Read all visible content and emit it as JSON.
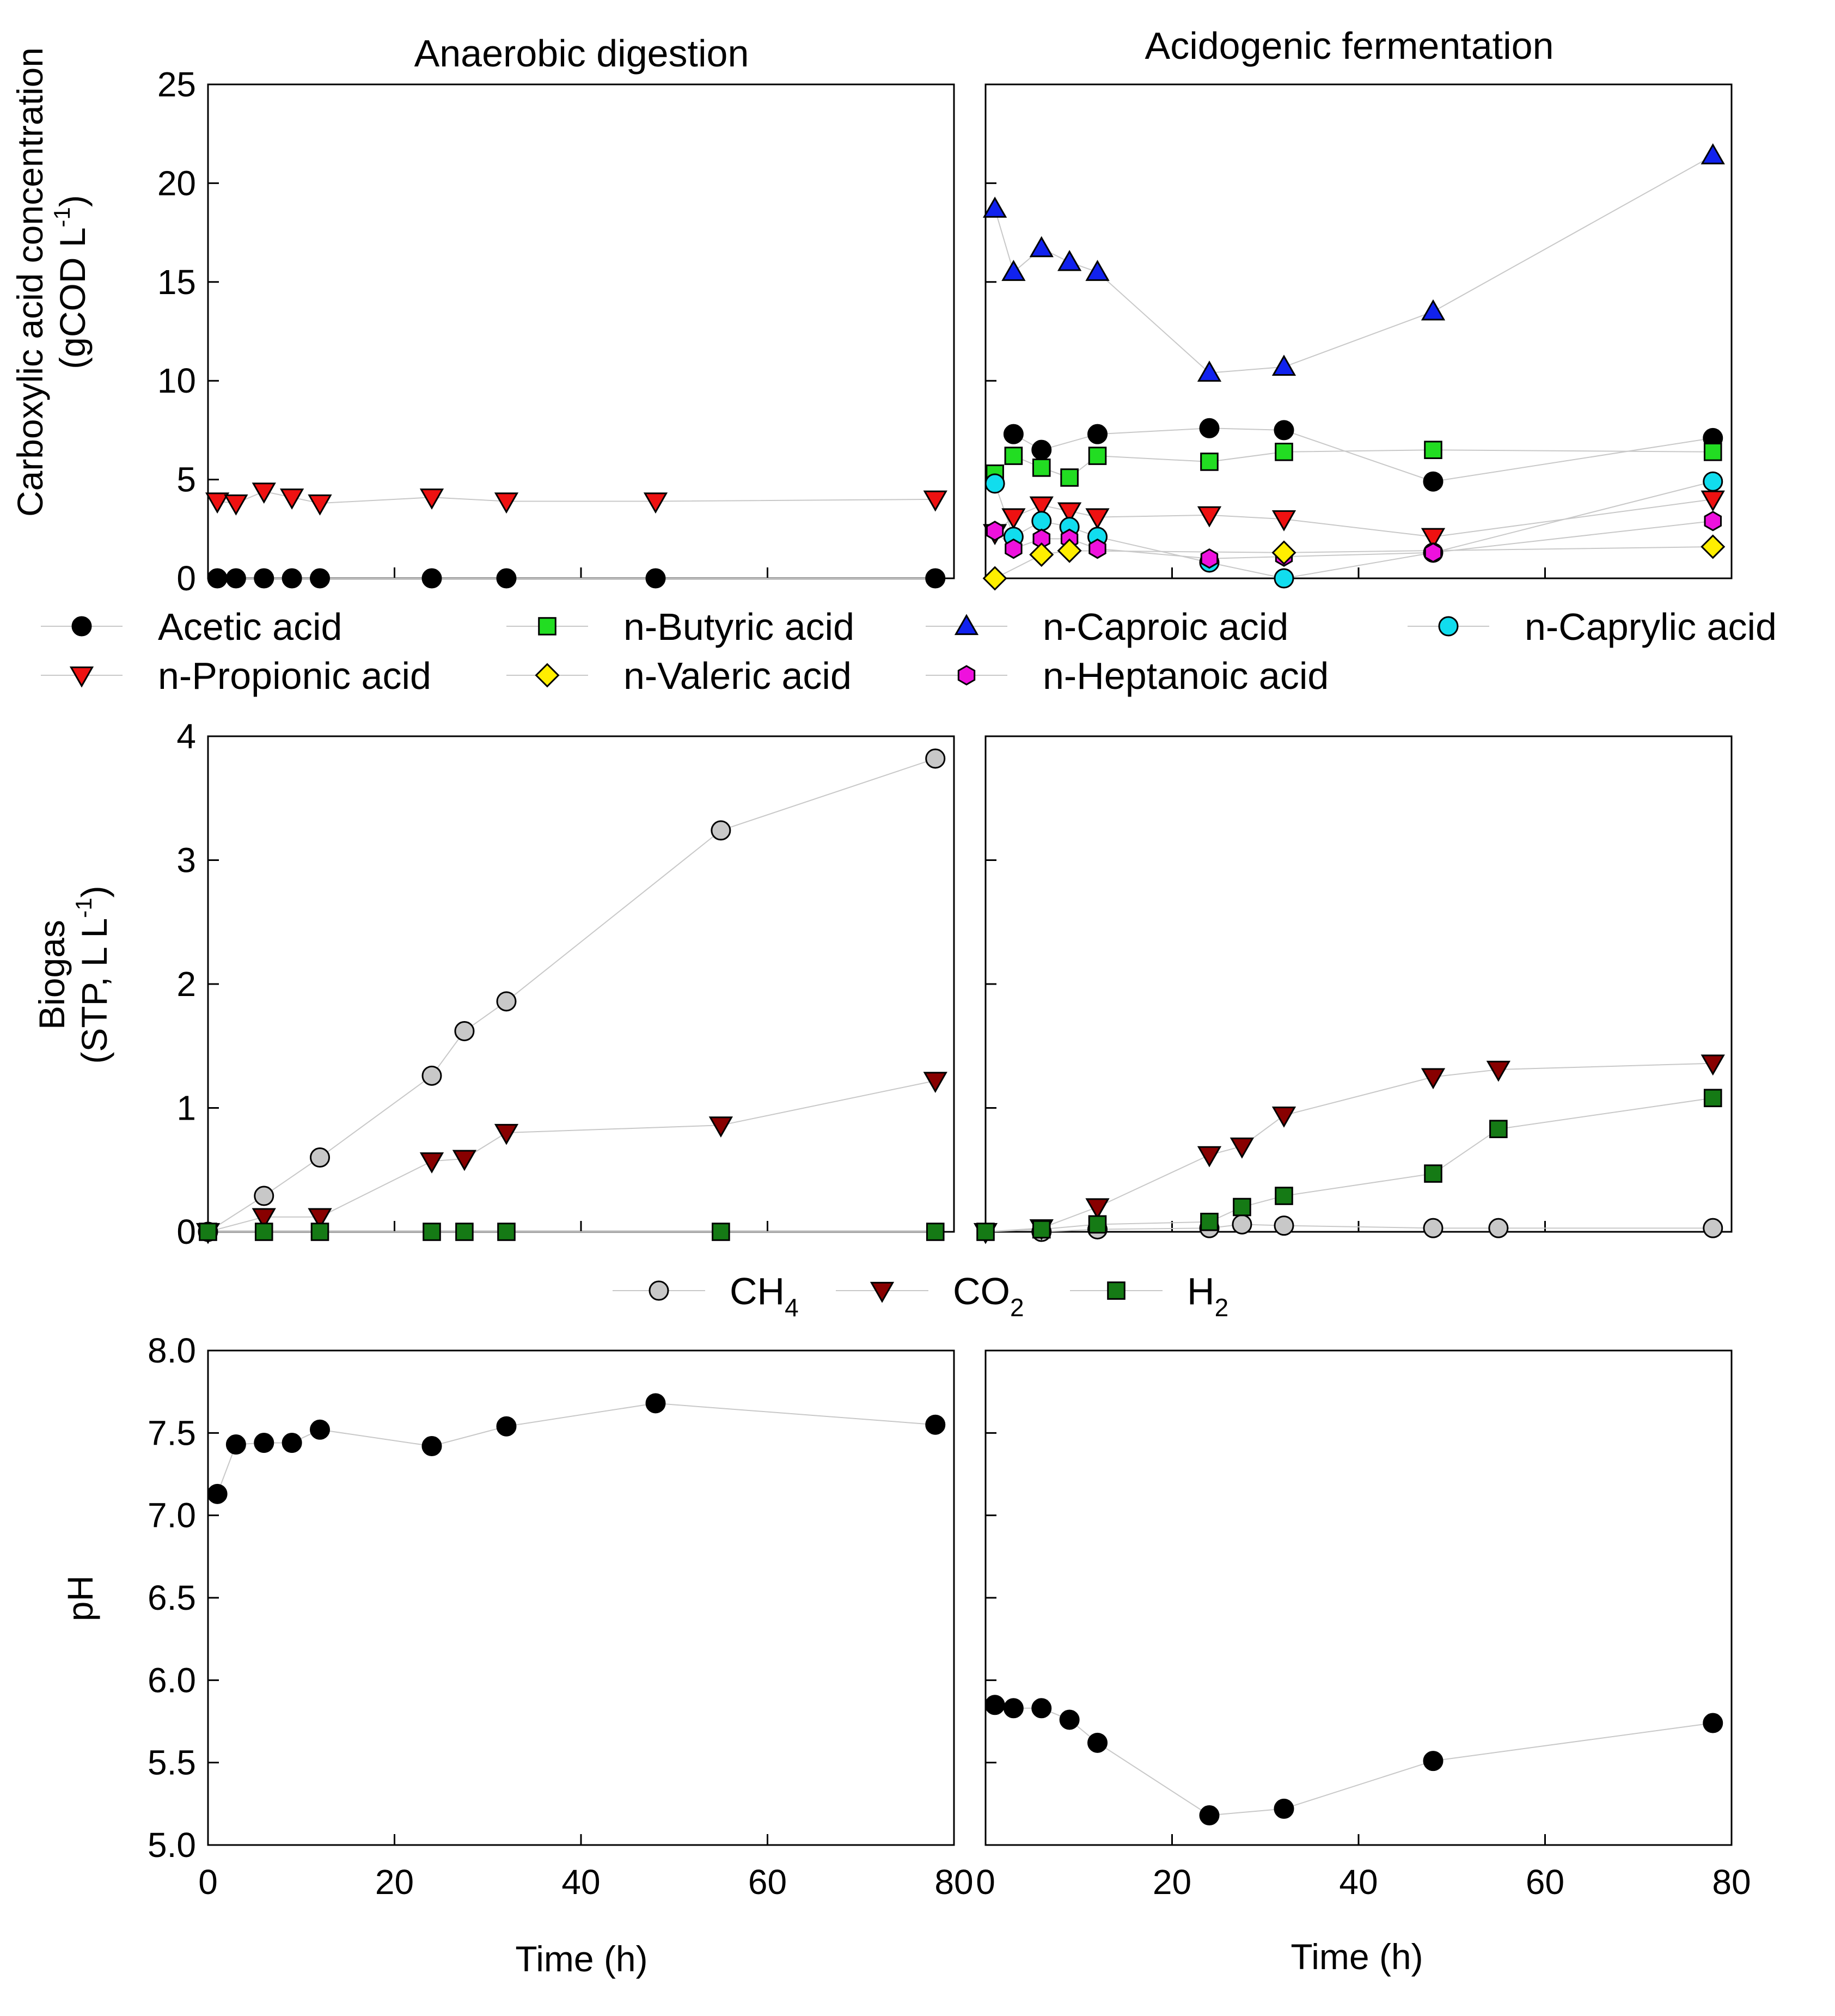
{
  "colors": {
    "acetic": "#000000",
    "propionic": "#ee1111",
    "butyric": "#22dd22",
    "valeric": "#ffee00",
    "caproic": "#1122ee",
    "heptanoic": "#ee11dd",
    "caprylic": "#11ddee",
    "ch4": "#c8c8c8",
    "co2": "#880000",
    "h2": "#157a15",
    "ph": "#000000",
    "connector": "#c8c8c8"
  },
  "chart_data": [
    {
      "id": "acids_ad",
      "type": "scatter",
      "title": "Anaerobic digestion",
      "xlabel": "",
      "ylabel": "Carboxylic acid concentration (gCOD L-1)",
      "xlim": [
        0,
        80
      ],
      "ylim": [
        0,
        25
      ],
      "yticks": [
        "0",
        "5",
        "10",
        "15",
        "20",
        "25"
      ],
      "xticks": [],
      "series": [
        {
          "name": "Acetic acid",
          "key": "acetic",
          "marker": "circle",
          "x": [
            1,
            3,
            6,
            9,
            12,
            24,
            32,
            48,
            78
          ],
          "y": [
            0,
            0,
            0,
            0,
            0,
            0,
            0,
            0,
            0
          ]
        },
        {
          "name": "n-Propionic acid",
          "key": "propionic",
          "marker": "tri-down",
          "x": [
            1,
            3,
            6,
            9,
            12,
            24,
            32,
            48,
            78
          ],
          "y": [
            3.9,
            3.8,
            4.4,
            4.1,
            3.8,
            4.1,
            3.9,
            3.9,
            4.0
          ]
        }
      ]
    },
    {
      "id": "acids_af",
      "type": "scatter",
      "title": "Acidogenic fermentation",
      "xlabel": "",
      "ylabel": "",
      "xlim": [
        0,
        80
      ],
      "ylim": [
        0,
        25
      ],
      "yticks": [],
      "xticks": [],
      "series": [
        {
          "name": "n-Caproic acid",
          "key": "caproic",
          "marker": "tri-up",
          "x": [
            1,
            3,
            6,
            9,
            12,
            24,
            32,
            48,
            78
          ],
          "y": [
            18.7,
            15.5,
            16.7,
            16.0,
            15.5,
            10.4,
            10.7,
            13.5,
            21.4
          ]
        },
        {
          "name": "Acetic acid",
          "key": "acetic",
          "marker": "circle",
          "x": [
            3,
            6,
            12,
            24,
            32,
            48,
            78
          ],
          "y": [
            7.3,
            6.5,
            7.3,
            7.6,
            7.5,
            4.9,
            7.1
          ]
        },
        {
          "name": "n-Butyric acid",
          "key": "butyric",
          "marker": "square",
          "x": [
            1,
            3,
            6,
            9,
            12,
            24,
            32,
            48,
            78
          ],
          "y": [
            5.3,
            6.2,
            5.6,
            5.1,
            6.2,
            5.9,
            6.4,
            6.5,
            6.4
          ]
        },
        {
          "name": "n-Propionic acid",
          "key": "propionic",
          "marker": "tri-down",
          "x": [
            1,
            3,
            6,
            9,
            12,
            24,
            32,
            48,
            78
          ],
          "y": [
            2.3,
            3.1,
            3.7,
            3.4,
            3.1,
            3.2,
            3.0,
            2.1,
            4.0
          ]
        },
        {
          "name": "n-Caprylic acid",
          "key": "caprylic",
          "marker": "circle",
          "x": [
            1,
            3,
            6,
            9,
            12,
            24,
            32,
            48,
            78
          ],
          "y": [
            4.8,
            2.1,
            2.9,
            2.6,
            2.1,
            0.8,
            0.0,
            1.3,
            4.9
          ]
        },
        {
          "name": "n-Heptanoic acid",
          "key": "heptanoic",
          "marker": "hexagon",
          "x": [
            1,
            3,
            6,
            9,
            12,
            24,
            32,
            48,
            78
          ],
          "y": [
            2.4,
            1.5,
            2.0,
            2.0,
            1.5,
            1.0,
            1.1,
            1.3,
            2.9
          ]
        },
        {
          "name": "n-Valeric acid",
          "key": "valeric",
          "marker": "diamond",
          "x": [
            1,
            6,
            9,
            32,
            78
          ],
          "y": [
            0.0,
            1.2,
            1.4,
            1.3,
            1.6
          ]
        }
      ]
    },
    {
      "id": "biogas_ad",
      "type": "scatter",
      "title": "",
      "xlabel": "",
      "ylabel": "Biogas (STP, L L-1)",
      "xlim": [
        0,
        80
      ],
      "ylim": [
        0,
        4
      ],
      "yticks": [
        "0",
        "1",
        "2",
        "3",
        "4"
      ],
      "xticks": [],
      "series": [
        {
          "name": "CH4",
          "key": "ch4",
          "marker": "circle",
          "x": [
            0,
            6,
            12,
            24,
            27.5,
            32,
            55,
            78
          ],
          "y": [
            0,
            0.29,
            0.6,
            1.26,
            1.62,
            1.86,
            3.24,
            3.82
          ]
        },
        {
          "name": "CO2",
          "key": "co2",
          "marker": "tri-down",
          "x": [
            0,
            6,
            12,
            24,
            27.5,
            32,
            55,
            78
          ],
          "y": [
            0,
            0.12,
            0.12,
            0.57,
            0.59,
            0.8,
            0.86,
            1.22
          ]
        },
        {
          "name": "H2",
          "key": "h2",
          "marker": "square",
          "x": [
            0,
            6,
            12,
            24,
            27.5,
            32,
            55,
            78
          ],
          "y": [
            0,
            0,
            0,
            0,
            0,
            0,
            0,
            0
          ]
        }
      ]
    },
    {
      "id": "biogas_af",
      "type": "scatter",
      "title": "",
      "xlabel": "",
      "ylabel": "",
      "xlim": [
        0,
        80
      ],
      "ylim": [
        0,
        4
      ],
      "yticks": [],
      "xticks": [],
      "series": [
        {
          "name": "CH4",
          "key": "ch4",
          "marker": "circle",
          "x": [
            6,
            12,
            24,
            27.5,
            32,
            48,
            55,
            78
          ],
          "y": [
            0.0,
            0.02,
            0.03,
            0.06,
            0.05,
            0.03,
            0.03,
            0.03
          ]
        },
        {
          "name": "CO2",
          "key": "co2",
          "marker": "tri-down",
          "x": [
            0,
            6,
            12,
            24,
            27.5,
            32,
            48,
            55,
            78
          ],
          "y": [
            0,
            0.03,
            0.2,
            0.62,
            0.69,
            0.94,
            1.25,
            1.31,
            1.36
          ]
        },
        {
          "name": "H2",
          "key": "h2",
          "marker": "square",
          "x": [
            0,
            6,
            12,
            24,
            27.5,
            32,
            48,
            55,
            78
          ],
          "y": [
            0,
            0.02,
            0.06,
            0.08,
            0.2,
            0.29,
            0.47,
            0.83,
            1.08
          ]
        }
      ]
    },
    {
      "id": "ph_ad",
      "type": "scatter",
      "title": "",
      "xlabel": "Time (h)",
      "ylabel": "pH",
      "xlim": [
        0,
        80
      ],
      "ylim": [
        5.0,
        8.0
      ],
      "yticks": [
        "5.0",
        "5.5",
        "6.0",
        "6.5",
        "7.0",
        "7.5",
        "8.0"
      ],
      "xticks": [
        "0",
        "20",
        "40",
        "60",
        "80"
      ],
      "series": [
        {
          "name": "pH",
          "key": "ph",
          "marker": "circle",
          "x": [
            1,
            3,
            6,
            9,
            12,
            24,
            32,
            48,
            78
          ],
          "y": [
            7.13,
            7.43,
            7.44,
            7.44,
            7.52,
            7.42,
            7.54,
            7.68,
            7.55
          ]
        }
      ]
    },
    {
      "id": "ph_af",
      "type": "scatter",
      "title": "",
      "xlabel": "Time (h)",
      "ylabel": "",
      "xlim": [
        0,
        80
      ],
      "ylim": [
        5.0,
        8.0
      ],
      "yticks": [],
      "xticks": [
        "0",
        "20",
        "40",
        "60",
        "80"
      ],
      "series": [
        {
          "name": "pH",
          "key": "ph",
          "marker": "circle",
          "x": [
            1,
            3,
            6,
            9,
            12,
            24,
            32,
            48,
            78
          ],
          "y": [
            5.85,
            5.83,
            5.83,
            5.76,
            5.62,
            5.18,
            5.22,
            5.51,
            5.74
          ]
        }
      ]
    }
  ],
  "legends": {
    "acids": [
      {
        "label": "Acetic acid",
        "key": "acetic",
        "marker": "circle"
      },
      {
        "label": "n-Butyric acid",
        "key": "butyric",
        "marker": "square"
      },
      {
        "label": "n-Caproic acid",
        "key": "caproic",
        "marker": "tri-up"
      },
      {
        "label": "n-Caprylic acid",
        "key": "caprylic",
        "marker": "circle"
      },
      {
        "label": "n-Propionic acid",
        "key": "propionic",
        "marker": "tri-down"
      },
      {
        "label": "n-Valeric acid",
        "key": "valeric",
        "marker": "diamond"
      },
      {
        "label": "n-Heptanoic acid",
        "key": "heptanoic",
        "marker": "hexagon"
      }
    ],
    "gas": [
      {
        "label": "CH",
        "sub": "4",
        "key": "ch4",
        "marker": "circle"
      },
      {
        "label": "CO",
        "sub": "2",
        "key": "co2",
        "marker": "tri-down"
      },
      {
        "label": "H",
        "sub": "2",
        "key": "h2",
        "marker": "square"
      }
    ]
  },
  "axis_text": {
    "acid_ylabel_line1": "Carboxylic acid concentration",
    "acid_ylabel_line2": "(gCOD L",
    "acid_ylabel_sup": "-1",
    "acid_ylabel_close": ")",
    "gas_ylabel_line1": "Biogas",
    "gas_ylabel_line2": "(STP, L L",
    "gas_ylabel_sup": "-1",
    "gas_ylabel_close": ")",
    "ph_ylabel": "pH",
    "xlabel": "Time (h)"
  }
}
